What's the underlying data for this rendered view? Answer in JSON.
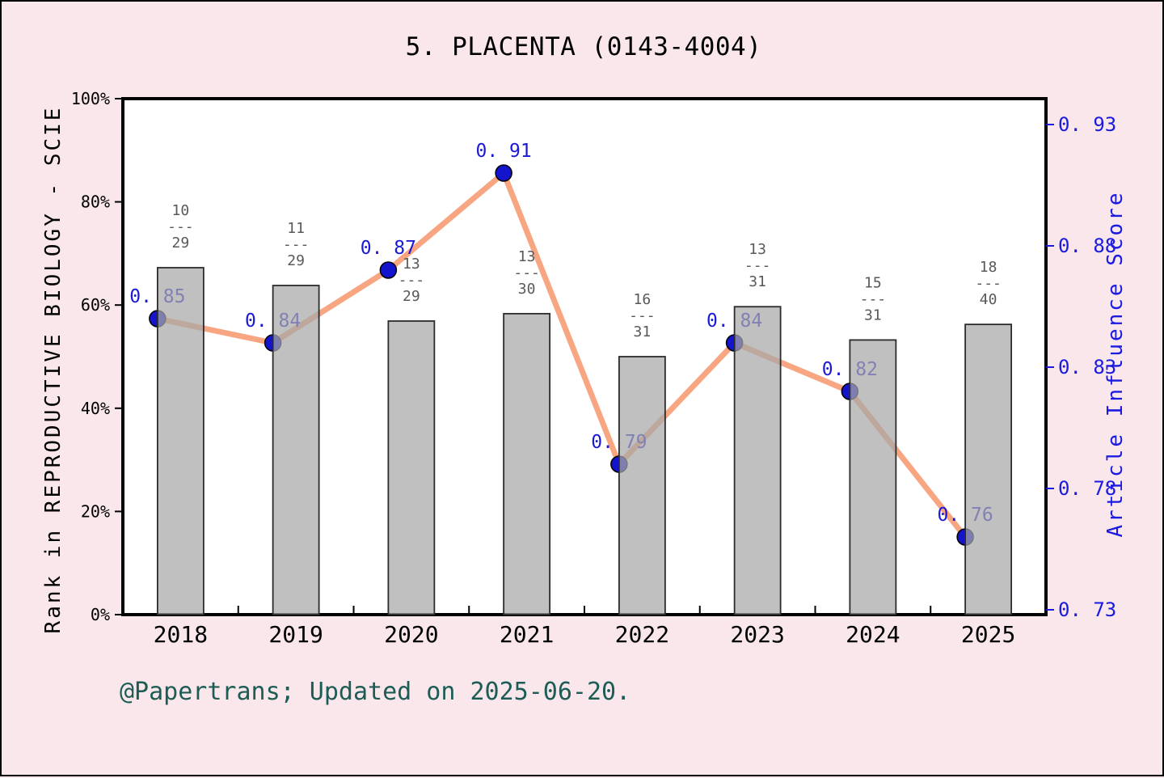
{
  "title": "5. PLACENTA (0143-4004)",
  "footer": "@Papertrans; Updated on 2025-06-20.",
  "colors": {
    "background": "#f9e7eb",
    "frame_border": "#000000",
    "plot_bg": "#ffffff",
    "plot_border": "#000000",
    "bar_fill": "#a8a8a8",
    "bar_border": "#2b2b2b",
    "line": "#f8a682",
    "marker_fill": "#1414cc",
    "marker_border": "#000000",
    "value_label": "#1a1ad6",
    "right_axis_text": "#1a1ae0",
    "left_axis_text": "#000000",
    "fraction_label": "#595959",
    "footer_text": "#1d5c55"
  },
  "chart_data": {
    "type": "bar+line combo",
    "title": "5. PLACENTA (0143-4004)",
    "categories": [
      "2018",
      "2019",
      "2020",
      "2021",
      "2022",
      "2023",
      "2024",
      "2025"
    ],
    "left_axis": {
      "label": "Rank in REPRODUCTIVE BIOLOGY - SCIE",
      "ticks": [
        0,
        20,
        40,
        60,
        80,
        100
      ],
      "tick_labels": [
        "0%",
        "20%",
        "40%",
        "60%",
        "80%",
        "100%"
      ],
      "range": [
        0,
        100
      ],
      "unit": "%"
    },
    "right_axis": {
      "label": "Article Influence Score",
      "ticks": [
        0.73,
        0.78,
        0.83,
        0.88,
        0.93
      ],
      "tick_labels": [
        "0. 73",
        "0. 78",
        "0. 83",
        "0. 88",
        "0. 93"
      ],
      "range": [
        0.73,
        0.93
      ]
    },
    "series": [
      {
        "name": "rank-percentile-bars",
        "type": "bar",
        "axis": "left",
        "fraction_labels": [
          {
            "top": "10",
            "bottom": "29"
          },
          {
            "top": "11",
            "bottom": "29"
          },
          {
            "top": "13",
            "bottom": "29"
          },
          {
            "top": "13",
            "bottom": "30"
          },
          {
            "top": "16",
            "bottom": "31"
          },
          {
            "top": "13",
            "bottom": "31"
          },
          {
            "top": "15",
            "bottom": "31"
          },
          {
            "top": "18",
            "bottom": "40"
          }
        ],
        "values_pct": [
          67.24,
          63.79,
          56.9,
          58.33,
          50.0,
          59.68,
          53.23,
          56.25
        ]
      },
      {
        "name": "article-influence-line",
        "type": "line",
        "axis": "right",
        "values": [
          0.85,
          0.84,
          0.87,
          0.91,
          0.79,
          0.84,
          0.82,
          0.76
        ],
        "point_labels": [
          "0. 85",
          "0. 84",
          "0. 87",
          "0. 91",
          "0. 79",
          "0. 84",
          "0. 82",
          "0. 76"
        ]
      }
    ],
    "grid": false,
    "legend": "none"
  }
}
